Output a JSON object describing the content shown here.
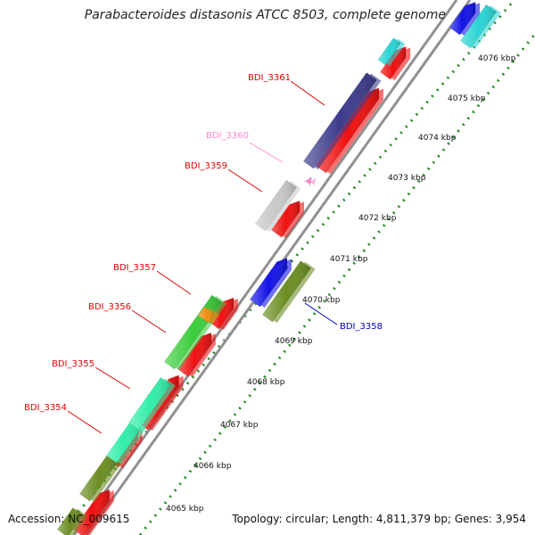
{
  "title": "Parabacteroides distasonis ATCC 8503, complete genome",
  "footer": {
    "accession": "Accession: NC_009615",
    "topology": "Topology: circular; Length: 4,811,379 bp; Genes: 3,954"
  },
  "colors": {
    "red": "#ee1111",
    "navy": "#3c3c8c",
    "blue": "#1414e6",
    "olive": "#6b8e23",
    "cyan": "#2ad4d4",
    "light_gray": "#c8c8c8",
    "green": "#3ccc3c",
    "orange": "#ee9010",
    "mint": "#33eeaa",
    "pink": "#ff88cc",
    "ticks": "#228b22",
    "backbone": "#909090"
  },
  "ticks": [
    {
      "label": "4065 kbp"
    },
    {
      "label": "4066 kbp"
    },
    {
      "label": "4067 kbp"
    },
    {
      "label": "4068 kbp"
    },
    {
      "label": "4069 kbp"
    },
    {
      "label": "4070 kbp"
    },
    {
      "label": "4071 kbp"
    },
    {
      "label": "4072 kbp"
    },
    {
      "label": "4073 kbp"
    },
    {
      "label": "4074 kbp"
    },
    {
      "label": "4075 kbp"
    },
    {
      "label": "4076 kbp"
    }
  ],
  "gene_labels": [
    {
      "id": "BDI_3361",
      "color": "#dd0000"
    },
    {
      "id": "BDI_3360",
      "color": "#ff88cc"
    },
    {
      "id": "BDI_3359",
      "color": "#dd0000"
    },
    {
      "id": "BDI_3357",
      "color": "#dd0000"
    },
    {
      "id": "BDI_3356",
      "color": "#dd0000"
    },
    {
      "id": "BDI_3355",
      "color": "#dd0000"
    },
    {
      "id": "BDI_3354",
      "color": "#dd0000"
    },
    {
      "id": "BDI_3358",
      "color": "#0000cc"
    }
  ]
}
